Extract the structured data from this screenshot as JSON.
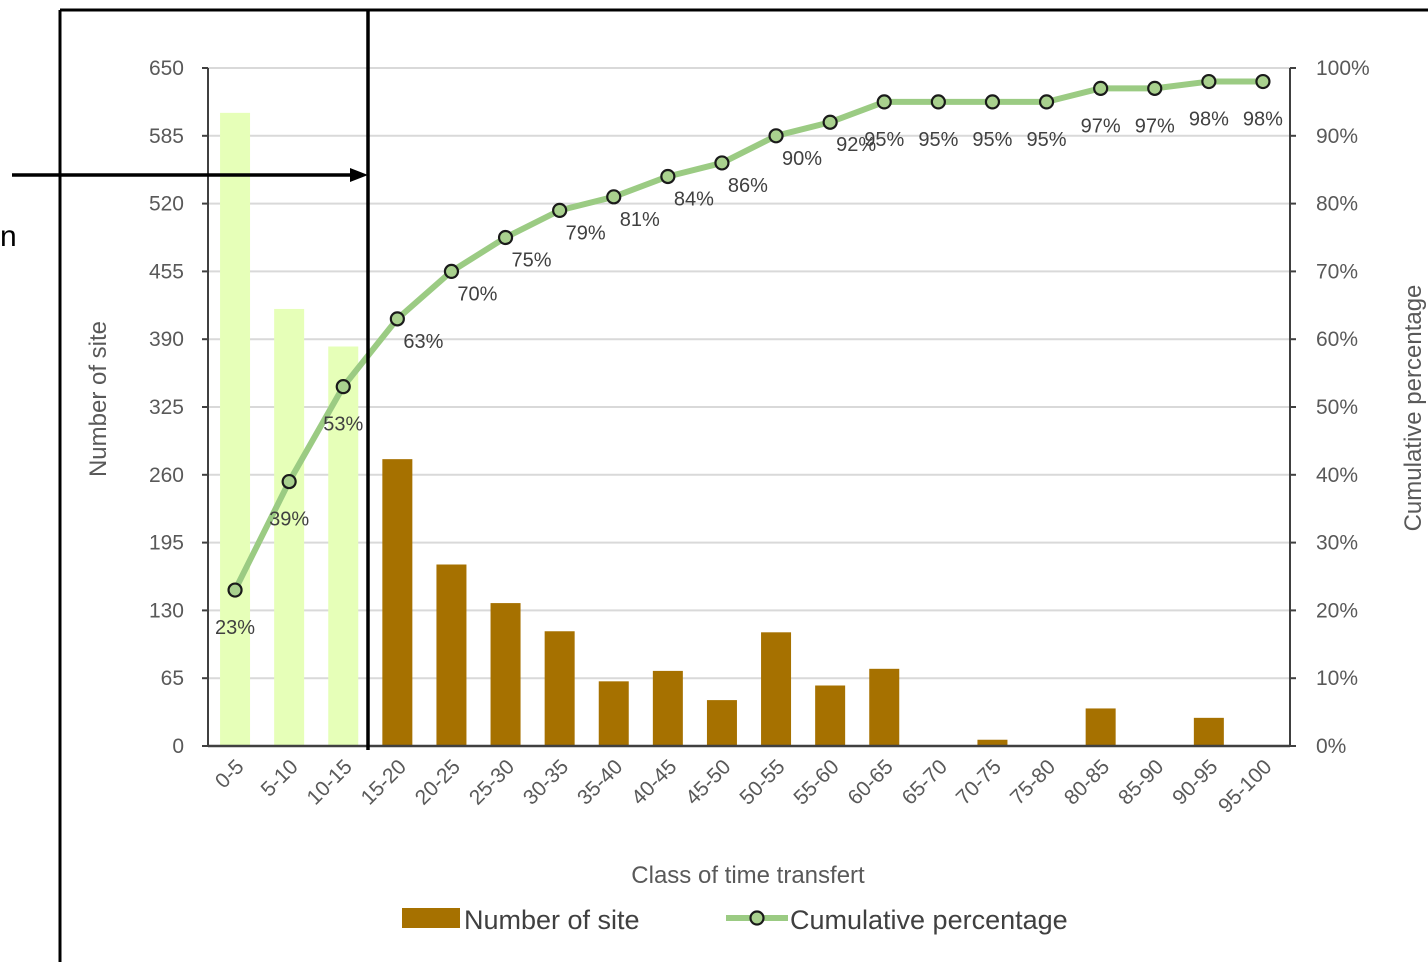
{
  "chart_data": {
    "type": "bar",
    "categories": [
      "0-5",
      "5-10",
      "10-15",
      "15-20",
      "20-25",
      "25-30",
      "30-35",
      "35-40",
      "40-45",
      "45-50",
      "50-55",
      "55-60",
      "60-65",
      "65-70",
      "70-75",
      "75-80",
      "80-85",
      "85-90",
      "90-95",
      "95-100"
    ],
    "series": [
      {
        "name": "Number of site",
        "type": "bar",
        "axis": "left",
        "values": [
          607,
          419,
          383,
          275,
          174,
          137,
          110,
          62,
          72,
          44,
          109,
          58,
          74,
          0,
          6,
          0,
          36,
          0,
          27,
          0
        ]
      },
      {
        "name": "Cumulative percentage",
        "type": "line",
        "axis": "right",
        "values": [
          23,
          39,
          53,
          63,
          70,
          75,
          79,
          81,
          84,
          86,
          90,
          92,
          95,
          95,
          95,
          95,
          97,
          97,
          98,
          98
        ],
        "data_labels": [
          "23%",
          "39%",
          "53%",
          "63%",
          "70%",
          "75%",
          "79%",
          "81%",
          "84%",
          "86%",
          "90%",
          "92%",
          "95%",
          "95%",
          "95%",
          "95%",
          "97%",
          "97%",
          "98%",
          "98%"
        ]
      }
    ],
    "highlighted_categories": [
      "0-5",
      "5-10",
      "10-15"
    ],
    "xlabel": "Class of time transfert",
    "ylabel": "Number of site",
    "y2label": "Cumulative percentage",
    "ylim": [
      0,
      650
    ],
    "y2lim": [
      0,
      100
    ],
    "yticks": [
      "0",
      "65",
      "130",
      "195",
      "260",
      "325",
      "390",
      "455",
      "520",
      "585",
      "650"
    ],
    "y2ticks": [
      "0%",
      "10%",
      "20%",
      "30%",
      "40%",
      "50%",
      "60%",
      "70%",
      "80%",
      "90%",
      "100%"
    ],
    "grid": true,
    "legend": "bottom",
    "edge_text": "n",
    "colors": {
      "bar": "#A67100",
      "bar_highlight": "#E6FFB8",
      "line": "#9BCB83",
      "marker_fill": "#A9D18E",
      "marker_stroke": "#1A1A1A",
      "grid": "#D9D9D9",
      "annotation": "#000000"
    }
  }
}
